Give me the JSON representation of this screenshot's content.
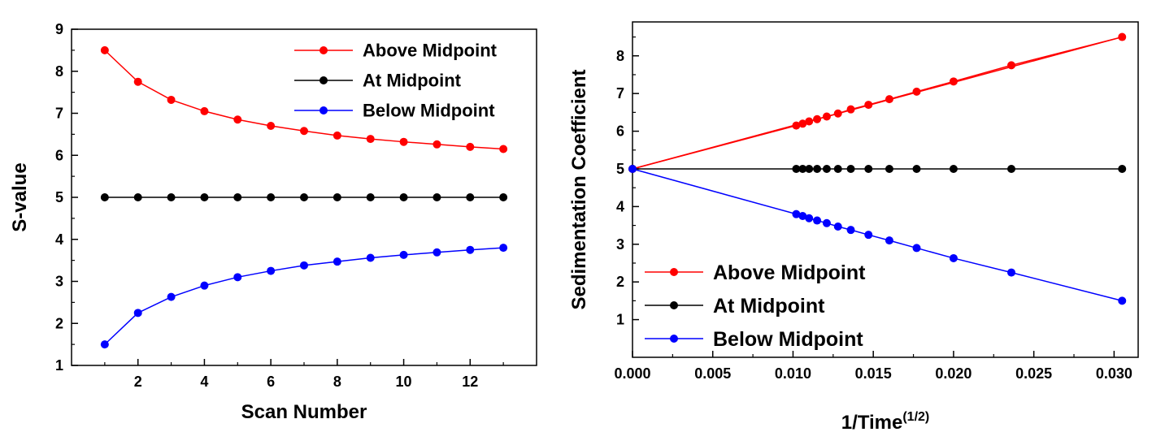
{
  "colors": {
    "above": "#ff0000",
    "at": "#000000",
    "below": "#0000ff"
  },
  "chart_data": [
    {
      "type": "line",
      "title": "",
      "xlabel": "Scan Number",
      "ylabel": "S-value",
      "xlim": [
        0,
        14
      ],
      "ylim": [
        1,
        9
      ],
      "xticks": [
        2,
        4,
        6,
        8,
        10,
        12
      ],
      "yticks": [
        1,
        2,
        3,
        4,
        5,
        6,
        7,
        8,
        9
      ],
      "grid": false,
      "legend_position": "top-right",
      "x": [
        1,
        2,
        3,
        4,
        5,
        6,
        7,
        8,
        9,
        10,
        11,
        12,
        13
      ],
      "series": [
        {
          "name": "Above Midpoint",
          "color_key": "above",
          "values": [
            8.5,
            7.75,
            7.32,
            7.05,
            6.85,
            6.7,
            6.58,
            6.47,
            6.39,
            6.32,
            6.26,
            6.2,
            6.15
          ]
        },
        {
          "name": "At Midpoint",
          "color_key": "at",
          "values": [
            5,
            5,
            5,
            5,
            5,
            5,
            5,
            5,
            5,
            5,
            5,
            5,
            5
          ]
        },
        {
          "name": "Below Midpoint",
          "color_key": "below",
          "values": [
            1.5,
            2.25,
            2.63,
            2.9,
            3.1,
            3.25,
            3.38,
            3.47,
            3.56,
            3.63,
            3.69,
            3.75,
            3.8
          ]
        }
      ]
    },
    {
      "type": "line",
      "title": "",
      "xlabel": "1/Time",
      "xlabel_superscript": "(1/2)",
      "ylabel": "Sedimentation Coefficient",
      "xlim": [
        0,
        0.0315
      ],
      "ylim": [
        0,
        8.9
      ],
      "xticks": [
        0,
        0.005,
        0.01,
        0.015,
        0.02,
        0.025,
        0.03
      ],
      "xtick_labels": [
        "0.000",
        "0.005",
        "0.010",
        "0.015",
        "0.020",
        "0.025",
        "0.030"
      ],
      "yticks": [
        1,
        2,
        3,
        4,
        5,
        6,
        7,
        8
      ],
      "grid": false,
      "legend_position": "bottom-left",
      "series": [
        {
          "name": "Above Midpoint",
          "color_key": "above",
          "marker": "none",
          "x": [
            0,
            0.0305
          ],
          "values": [
            5,
            8.5
          ]
        },
        {
          "name": "Above Midpoint",
          "color_key": "above",
          "marker": "circle",
          "x": [
            0,
            0.0102,
            0.0106,
            0.011,
            0.0115,
            0.0121,
            0.0128,
            0.0136,
            0.0147,
            0.016,
            0.0177,
            0.02,
            0.0236,
            0.0305
          ],
          "values": [
            5,
            6.15,
            6.2,
            6.26,
            6.32,
            6.39,
            6.47,
            6.58,
            6.7,
            6.85,
            7.05,
            7.32,
            7.75,
            8.5
          ]
        },
        {
          "name": "At Midpoint",
          "color_key": "at",
          "marker": "circle",
          "x": [
            0,
            0.0102,
            0.0106,
            0.011,
            0.0115,
            0.0121,
            0.0128,
            0.0136,
            0.0147,
            0.016,
            0.0177,
            0.02,
            0.0236,
            0.0305
          ],
          "values": [
            5,
            5,
            5,
            5,
            5,
            5,
            5,
            5,
            5,
            5,
            5,
            5,
            5,
            5
          ]
        },
        {
          "name": "Below Midpoint",
          "color_key": "below",
          "marker": "circle",
          "x": [
            0,
            0.0102,
            0.0106,
            0.011,
            0.0115,
            0.0121,
            0.0128,
            0.0136,
            0.0147,
            0.016,
            0.0177,
            0.02,
            0.0236,
            0.0305
          ],
          "values": [
            5,
            3.8,
            3.75,
            3.69,
            3.63,
            3.56,
            3.47,
            3.38,
            3.25,
            3.1,
            2.9,
            2.63,
            2.25,
            1.5
          ]
        }
      ]
    }
  ]
}
